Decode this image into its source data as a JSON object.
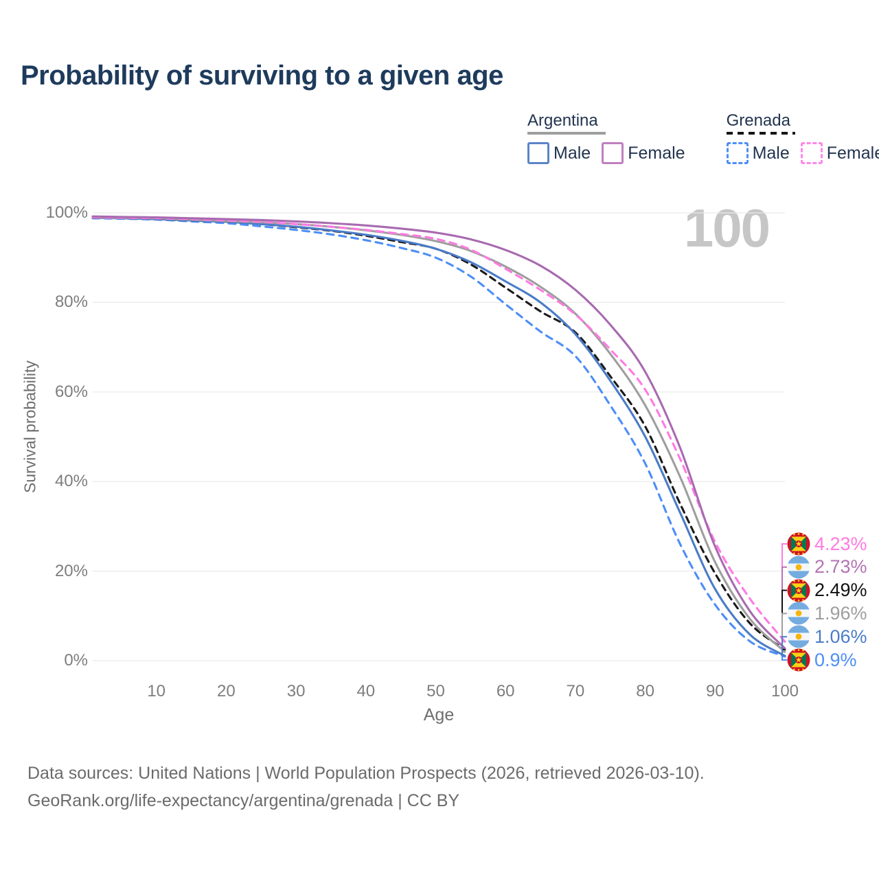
{
  "title": "Probability of surviving to a given age",
  "watermark": "100",
  "legend": {
    "groups": [
      {
        "country": "Argentina",
        "line_style": "solid",
        "underline_color": "#9e9e9e",
        "items": [
          {
            "label": "Male",
            "color": "#5b84c8",
            "dashed": false
          },
          {
            "label": "Female",
            "color": "#bf7fbf",
            "dashed": false
          }
        ]
      },
      {
        "country": "Grenada",
        "line_style": "dashed",
        "underline_color": "#151515",
        "items": [
          {
            "label": "Male",
            "color": "#4d8ef7",
            "dashed": true
          },
          {
            "label": "Female",
            "color": "#ff87e8",
            "dashed": true
          }
        ]
      }
    ]
  },
  "chart_data": {
    "type": "line",
    "title": "Probability of surviving to a given age",
    "xlabel": "Age",
    "ylabel": "Survival probability",
    "xlim": [
      0,
      100
    ],
    "ylim": [
      0,
      100
    ],
    "grid": true,
    "x_ticks": [
      10,
      20,
      30,
      40,
      50,
      60,
      70,
      80,
      90,
      100
    ],
    "y_ticks": [
      {
        "value": 0,
        "label": "0%"
      },
      {
        "value": 20,
        "label": "20%"
      },
      {
        "value": 40,
        "label": "40%"
      },
      {
        "value": 60,
        "label": "60%"
      },
      {
        "value": 80,
        "label": "80%"
      },
      {
        "value": 100,
        "label": "100%"
      }
    ],
    "x": [
      0,
      5,
      10,
      15,
      20,
      25,
      30,
      35,
      40,
      45,
      50,
      55,
      60,
      65,
      70,
      75,
      80,
      85,
      90,
      95,
      100
    ],
    "series": [
      {
        "id": "gd_male",
        "name": "Grenada Male",
        "country": "grenada",
        "color": "#4d8ef7",
        "dashed": true,
        "end_label": "0.9%",
        "values": [
          98.8,
          98.7,
          98.5,
          98.1,
          97.7,
          97.0,
          96.2,
          95.2,
          93.9,
          92.2,
          90.0,
          85.8,
          79.6,
          73.5,
          68.0,
          57.0,
          44.0,
          26.0,
          12.5,
          4.3,
          0.9
        ]
      },
      {
        "id": "gd_total",
        "name": "Grenada",
        "country": "grenada",
        "color": "#1a1a1a",
        "dashed": true,
        "end_label": "2.49%",
        "values": [
          98.9,
          98.8,
          98.6,
          98.3,
          98.0,
          97.5,
          96.8,
          96.0,
          94.9,
          93.5,
          92.0,
          88.5,
          83.3,
          78.0,
          73.3,
          63.5,
          52.3,
          35.0,
          19.5,
          8.3,
          2.49
        ]
      },
      {
        "id": "ar_male",
        "name": "Argentina Male",
        "country": "argentina",
        "color": "#4b7cc7",
        "dashed": false,
        "end_label": "1.06%",
        "values": [
          98.9,
          98.8,
          98.6,
          98.3,
          98.0,
          97.5,
          96.9,
          96.1,
          95.1,
          93.8,
          92.0,
          89.0,
          84.7,
          80.0,
          72.9,
          62.5,
          50.0,
          33.0,
          16.0,
          5.8,
          1.06
        ]
      },
      {
        "id": "ar_total",
        "name": "Argentina",
        "country": "argentina",
        "color": "#9e9e9e",
        "dashed": false,
        "end_label": "1.96%",
        "values": [
          99.0,
          98.9,
          98.8,
          98.5,
          98.2,
          97.9,
          97.5,
          96.9,
          96.1,
          95.1,
          93.7,
          91.5,
          88.0,
          83.5,
          77.5,
          68.5,
          57.0,
          41.0,
          22.0,
          9.3,
          1.96
        ]
      },
      {
        "id": "gd_female",
        "name": "Grenada Female",
        "country": "grenada",
        "color": "#ff7ae1",
        "dashed": true,
        "end_label": "4.23%",
        "values": [
          99.0,
          98.9,
          98.8,
          98.6,
          98.3,
          98.0,
          97.5,
          96.9,
          96.2,
          95.3,
          94.2,
          91.8,
          87.5,
          82.8,
          77.3,
          69.5,
          60.5,
          45.0,
          26.5,
          13.8,
          4.23
        ]
      },
      {
        "id": "ar_female",
        "name": "Argentina Female",
        "country": "argentina",
        "color": "#a86ab0",
        "dashed": false,
        "end_label": "2.73%",
        "values": [
          99.2,
          99.1,
          99.0,
          98.8,
          98.6,
          98.4,
          98.1,
          97.7,
          97.2,
          96.5,
          95.6,
          94.1,
          91.7,
          88.2,
          82.8,
          75.0,
          64.5,
          47.5,
          25.5,
          11.0,
          2.73
        ]
      }
    ],
    "legend_position": "top-right",
    "hovered_x_value": "100"
  },
  "end_labels": [
    {
      "value": "4.23%",
      "series": "gd_female",
      "country": "grenada",
      "color": "#ff7ae1"
    },
    {
      "value": "2.73%",
      "series": "ar_female",
      "country": "argentina",
      "color": "#b273b2"
    },
    {
      "value": "2.49%",
      "series": "gd_total",
      "country": "grenada",
      "color": "#111111"
    },
    {
      "value": "1.96%",
      "series": "ar_total",
      "country": "argentina",
      "color": "#9e9e9e"
    },
    {
      "value": "1.06%",
      "series": "ar_male",
      "country": "argentina",
      "color": "#4b7cc7"
    },
    {
      "value": "0.9%",
      "series": "gd_male",
      "country": "grenada",
      "color": "#4d8ef7"
    }
  ],
  "flag_colors": {
    "argentina_blue": "#74ACDF",
    "argentina_sun": "#F6B40E",
    "grenada_red": "#CE1126",
    "grenada_green": "#00794e",
    "grenada_yellow": "#FCD116"
  },
  "colors": {
    "grid": "#e9e9e9",
    "title": "#1e3b5c",
    "axis_text": "#7d7d7d",
    "watermark": "#c6c6c6",
    "footer": "#6b6b6b"
  },
  "footer": {
    "line1": "Data sources: United Nations | World Population Prospects (2026, retrieved 2026-03-10).",
    "line2": "GeoRank.org/life-expectancy/argentina/grenada | CC BY"
  }
}
